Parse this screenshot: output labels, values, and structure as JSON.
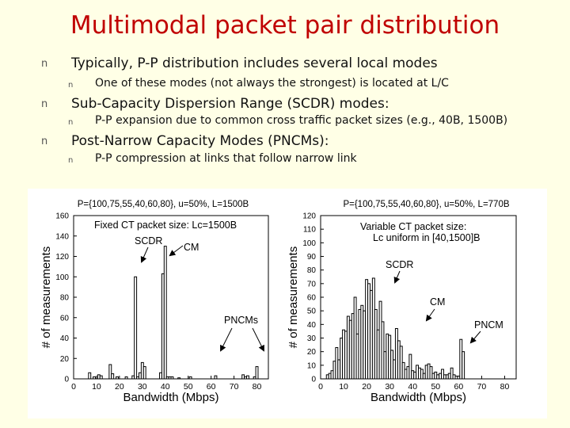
{
  "slide": {
    "title": "Multimodal packet pair distribution",
    "bullet_symbol": "n",
    "bullets": [
      {
        "text": "Typically, P-P distribution includes several local modes",
        "sub": "One of these modes (not always the strongest) is located at L/C"
      },
      {
        "text": "Sub-Capacity Dispersion Range (SCDR) modes:",
        "sub": "P-P expansion due to common cross traffic packet sizes (e.g., 40B, 1500B)"
      },
      {
        "text": "Post-Narrow Capacity Modes (PNCMs):",
        "sub": "P-P compression at links that follow narrow link"
      }
    ]
  },
  "chart_data": [
    {
      "type": "bar",
      "title": "P={100,75,55,40,60,80}, u=50%, L=1500B",
      "xlabel": "Bandwidth (Mbps)",
      "ylabel": "# of measurements",
      "xlim": [
        0,
        85
      ],
      "ylim": [
        0,
        160
      ],
      "xticks": [
        0,
        10,
        20,
        30,
        40,
        50,
        60,
        70,
        80
      ],
      "yticks": [
        0,
        20,
        40,
        60,
        80,
        100,
        120,
        140,
        160
      ],
      "x": [
        7,
        9,
        11,
        12,
        16,
        17,
        19,
        23,
        26,
        27,
        28,
        29,
        30,
        31,
        38,
        39,
        40,
        41,
        42,
        43,
        46,
        51,
        62,
        74,
        75,
        76,
        79,
        80
      ],
      "values": [
        6,
        2,
        4,
        3,
        14,
        5,
        2,
        2,
        3,
        100,
        2,
        6,
        16,
        12,
        6,
        103,
        130,
        2,
        2,
        2,
        1,
        2,
        3,
        4,
        2,
        3,
        2,
        12
      ],
      "annotations": [
        {
          "text": "Fixed CT packet size: Lc=1500B"
        },
        {
          "text": "SCDR"
        },
        {
          "text": "CM"
        },
        {
          "text": "PNCMs"
        }
      ]
    },
    {
      "type": "bar",
      "title": "P={100,75,55,40,60,80}, u=50%, L=770B",
      "xlabel": "Bandwidth (Mbps)",
      "ylabel": "# of measurements",
      "xlim": [
        0,
        85
      ],
      "ylim": [
        0,
        120
      ],
      "xticks": [
        0,
        10,
        20,
        30,
        40,
        50,
        60,
        70,
        80
      ],
      "yticks": [
        0,
        10,
        20,
        30,
        40,
        50,
        60,
        70,
        80,
        90,
        100,
        110,
        120
      ],
      "x": [
        3,
        4,
        5,
        6,
        7,
        8,
        9,
        10,
        11,
        12,
        13,
        14,
        15,
        16,
        17,
        18,
        19,
        20,
        21,
        22,
        23,
        24,
        25,
        26,
        27,
        28,
        29,
        30,
        31,
        32,
        33,
        34,
        35,
        36,
        37,
        38,
        39,
        40,
        41,
        42,
        43,
        44,
        45,
        46,
        47,
        48,
        49,
        50,
        51,
        52,
        53,
        54,
        55,
        56,
        57,
        58,
        59,
        60,
        61,
        62
      ],
      "values": [
        3,
        4,
        6,
        13,
        23,
        14,
        30,
        36,
        35,
        46,
        43,
        48,
        60,
        33,
        51,
        54,
        50,
        73,
        70,
        65,
        74,
        51,
        36,
        57,
        42,
        20,
        33,
        32,
        21,
        14,
        37,
        28,
        24,
        12,
        7,
        9,
        18,
        6,
        5,
        10,
        8,
        7,
        4,
        10,
        11,
        9,
        4,
        5,
        3,
        4,
        7,
        3,
        3,
        4,
        8,
        3,
        2,
        2,
        29,
        20
      ],
      "annotations": [
        {
          "text": "Variable CT packet size:"
        },
        {
          "text": "Lc uniform in [40,1500]B"
        },
        {
          "text": "SCDR"
        },
        {
          "text": "CM"
        },
        {
          "text": "PNCM"
        }
      ]
    }
  ]
}
